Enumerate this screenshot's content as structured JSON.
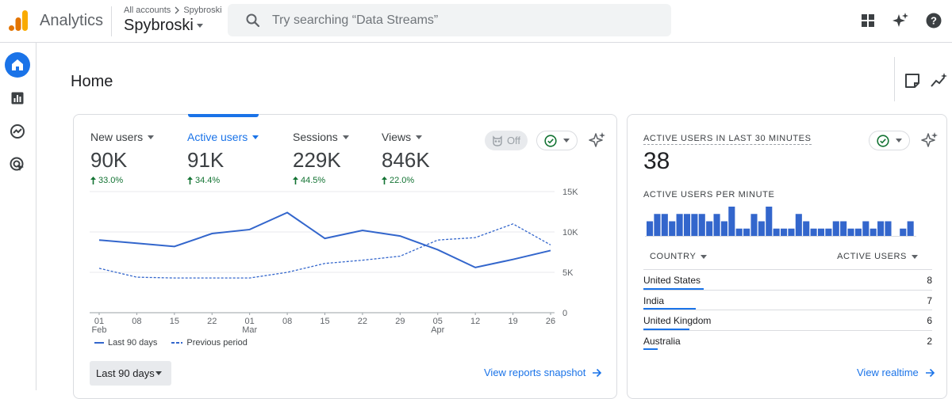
{
  "header": {
    "app_name": "Analytics",
    "breadcrumb_account": "All accounts",
    "breadcrumb_property": "Spybroski",
    "property_name": "Spybroski",
    "search_placeholder": "Try searching “Data Streams”",
    "icons": [
      "apps-grid-icon",
      "insights-sparkle-icon",
      "help-icon"
    ]
  },
  "nav": {
    "items": [
      "home-icon",
      "reports-icon",
      "explore-icon",
      "advertising-icon"
    ],
    "active": "home-icon"
  },
  "page": {
    "title": "Home"
  },
  "metrics": [
    {
      "label": "New users",
      "value": "90K",
      "delta": "33.0%"
    },
    {
      "label": "Active users",
      "value": "91K",
      "delta": "34.4%"
    },
    {
      "label": "Sessions",
      "value": "229K",
      "delta": "44.5%"
    },
    {
      "label": "Views",
      "value": "846K",
      "delta": "22.0%"
    }
  ],
  "main_card": {
    "off_label": "Off",
    "date_range": "Last 90 days",
    "link": "View reports snapshot"
  },
  "chart_data": {
    "type": "line",
    "x_ticks": [
      {
        "day": "01",
        "month": "Feb"
      },
      {
        "day": "08",
        "month": ""
      },
      {
        "day": "15",
        "month": ""
      },
      {
        "day": "22",
        "month": ""
      },
      {
        "day": "01",
        "month": "Mar"
      },
      {
        "day": "08",
        "month": ""
      },
      {
        "day": "15",
        "month": ""
      },
      {
        "day": "22",
        "month": ""
      },
      {
        "day": "29",
        "month": ""
      },
      {
        "day": "05",
        "month": "Apr"
      },
      {
        "day": "12",
        "month": ""
      },
      {
        "day": "19",
        "month": ""
      },
      {
        "day": "26",
        "month": ""
      }
    ],
    "y_ticks": [
      "15K",
      "10K",
      "5K",
      "0"
    ],
    "ylim": [
      0,
      15000
    ],
    "series": [
      {
        "name": "Last 90 days",
        "values": [
          9000,
          8600,
          8200,
          9800,
          10300,
          12400,
          9200,
          10200,
          9500,
          7800,
          5600,
          6600,
          7700
        ]
      },
      {
        "name": "Previous period",
        "values": [
          5500,
          4400,
          4300,
          4300,
          4300,
          5000,
          6100,
          6500,
          7000,
          9000,
          9300,
          11000,
          8400
        ]
      }
    ],
    "colors": {
      "current": "#3366cc",
      "previous": "#3366cc"
    },
    "legend": "bottom-left",
    "grid": true
  },
  "realtime": {
    "title": "ACTIVE USERS IN LAST 30 MINUTES",
    "value": "38",
    "subtitle": "ACTIVE USERS PER MINUTE",
    "per_minute": [
      2,
      3,
      3,
      2,
      3,
      3,
      3,
      3,
      2,
      3,
      2,
      4,
      1,
      1,
      3,
      2,
      4,
      1,
      1,
      1,
      3,
      2,
      1,
      1,
      1,
      2,
      2,
      1,
      1,
      2,
      1,
      2,
      2,
      0,
      1,
      2
    ],
    "col_country": "COUNTRY",
    "col_users": "ACTIVE USERS",
    "rows": [
      {
        "country": "United States",
        "count": "8",
        "share": 0.21
      },
      {
        "country": "India",
        "count": "7",
        "share": 0.18
      },
      {
        "country": "United Kingdom",
        "count": "6",
        "share": 0.16
      },
      {
        "country": "Australia",
        "count": "2",
        "share": 0.05
      }
    ],
    "link": "View realtime"
  }
}
